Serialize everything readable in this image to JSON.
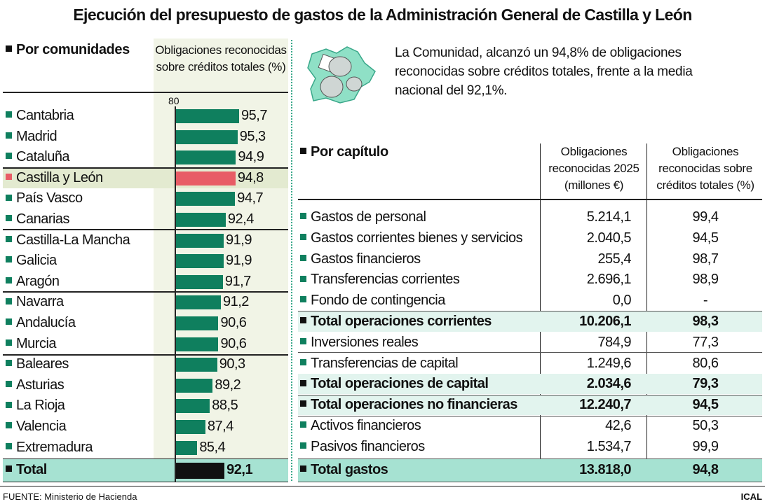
{
  "title": "Ejecución del presupuesto de gastos de la Administración General de Castilla y León",
  "colors": {
    "bar": "#0f7f5e",
    "highlight_bar": "#e85c66",
    "total_bar": "#111111",
    "highlight_row": "#e3ead0",
    "subtotal_row": "#e2f4ee",
    "total_row": "#a6e2d2",
    "map": "#8fe0c6"
  },
  "intro_text": "La Comunidad, alcanzó un 94,8% de obligaciones reconocidas sobre créditos totales, frente a la media nacional del 92,1%.",
  "map_icon": "castilla-leon-map-with-coins-icon",
  "footer": {
    "source": "FUENTE: Ministerio de Hacienda",
    "credit": "ICAL"
  },
  "chart_data": [
    {
      "type": "bar",
      "orientation": "horizontal",
      "title": "Por comunidades",
      "value_header": "Obligaciones reconocidas sobre créditos totales (%)",
      "axis_start_label": "80",
      "xlim": [
        80,
        100
      ],
      "categories": [
        "Cantabria",
        "Madrid",
        "Cataluña",
        "Castilla y León",
        "País Vasco",
        "Canarias",
        "Castilla-La Mancha",
        "Galicia",
        "Aragón",
        "Navarra",
        "Andalucía",
        "Murcia",
        "Baleares",
        "Asturias",
        "La Rioja",
        "Valencia",
        "Extremadura",
        "Total"
      ],
      "values": [
        95.7,
        95.3,
        94.9,
        94.8,
        94.7,
        92.4,
        91.9,
        91.9,
        91.7,
        91.2,
        90.6,
        90.6,
        90.3,
        89.2,
        88.5,
        87.4,
        85.4,
        92.1
      ],
      "labels": [
        "95,7",
        "95,3",
        "94,9",
        "94,8",
        "94,7",
        "92,4",
        "91,9",
        "91,9",
        "91,7",
        "91,2",
        "90,6",
        "90,6",
        "90,3",
        "89,2",
        "88,5",
        "87,4",
        "85,4",
        "92,1"
      ],
      "highlight": "Castilla y León"
    },
    {
      "type": "table",
      "title": "Por capítulo",
      "columns": [
        "Obligaciones reconocidas 2025 (millones €)",
        "Obligaciones reconocidas sobre créditos totales (%)"
      ],
      "rows": [
        {
          "label": "Gastos de personal",
          "amount": "5.214,1",
          "pct": "99,4",
          "kind": "item"
        },
        {
          "label": "Gastos corrientes bienes y servicios",
          "amount": "2.040,5",
          "pct": "94,5",
          "kind": "item"
        },
        {
          "label": "Gastos financieros",
          "amount": "255,4",
          "pct": "98,7",
          "kind": "item"
        },
        {
          "label": "Transferencias corrientes",
          "amount": "2.696,1",
          "pct": "98,9",
          "kind": "item"
        },
        {
          "label": "Fondo de contingencia",
          "amount": "0,0",
          "pct": "-",
          "kind": "item"
        },
        {
          "label": "Total operaciones corrientes",
          "amount": "10.206,1",
          "pct": "98,3",
          "kind": "subtotal"
        },
        {
          "label": "Inversiones reales",
          "amount": "784,9",
          "pct": "77,3",
          "kind": "item"
        },
        {
          "label": "Transferencias de capital",
          "amount": "1.249,6",
          "pct": "80,6",
          "kind": "item"
        },
        {
          "label": "Total operaciones de capital",
          "amount": "2.034,6",
          "pct": "79,3",
          "kind": "subtotal"
        },
        {
          "label": "Total operaciones no financieras",
          "amount": "12.240,7",
          "pct": "94,5",
          "kind": "subtotal"
        },
        {
          "label": "Activos financieros",
          "amount": "42,6",
          "pct": "50,3",
          "kind": "item"
        },
        {
          "label": "Pasivos financieros",
          "amount": "1.534,7",
          "pct": "99,9",
          "kind": "item"
        },
        {
          "label": "Total gastos",
          "amount": "13.818,0",
          "pct": "94,8",
          "kind": "total"
        }
      ]
    }
  ]
}
